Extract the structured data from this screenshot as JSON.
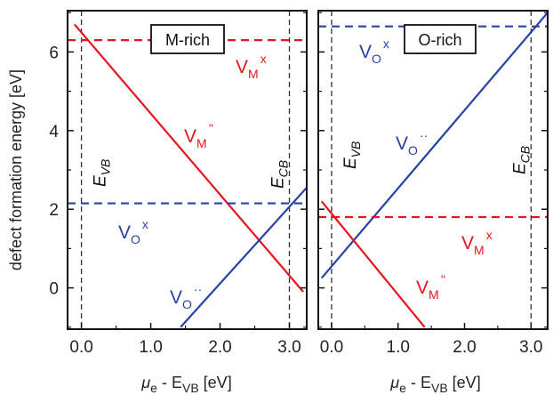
{
  "chart_data": [
    {
      "type": "line",
      "panel_label": "M-rich",
      "xlim": [
        -0.2,
        3.25
      ],
      "ylim": [
        -1.05,
        7.05
      ],
      "xticks": [
        "0.0",
        "1.0",
        "2.0",
        "3.0"
      ],
      "yticks": [
        "0",
        "2",
        "4",
        "6"
      ],
      "E_VB": 0.0,
      "E_CB": 3.0,
      "series": [
        {
          "name": "V_M^x",
          "color": "#e8141b",
          "style": "dashed",
          "x": [
            -0.2,
            3.25
          ],
          "y": [
            6.3,
            6.3
          ]
        },
        {
          "name": "V_M''",
          "color": "#e8141b",
          "style": "solid",
          "x": [
            -0.1,
            3.2
          ],
          "y": [
            6.7,
            -0.1
          ]
        },
        {
          "name": "V_O^x",
          "color": "#2741a6",
          "style": "dashed",
          "x": [
            -0.2,
            3.25
          ],
          "y": [
            2.15,
            2.15
          ]
        },
        {
          "name": "V_O··",
          "color": "#2741a6",
          "style": "solid",
          "x": [
            1.43,
            3.25
          ],
          "y": [
            -1.0,
            2.55
          ]
        }
      ]
    },
    {
      "type": "line",
      "panel_label": "O-rich",
      "xlim": [
        -0.2,
        3.25
      ],
      "ylim": [
        -1.05,
        7.05
      ],
      "xticks": [
        "0.0",
        "1.0",
        "2.0",
        "3.0"
      ],
      "yticks": [
        "0",
        "2",
        "4",
        "6"
      ],
      "E_VB": 0.0,
      "E_CB": 3.0,
      "series": [
        {
          "name": "V_O^x",
          "color": "#2741a6",
          "style": "dashed",
          "x": [
            -0.2,
            3.25
          ],
          "y": [
            6.65,
            6.65
          ]
        },
        {
          "name": "V_O··",
          "color": "#2741a6",
          "style": "solid",
          "x": [
            -0.15,
            3.25
          ],
          "y": [
            0.25,
            7.0
          ]
        },
        {
          "name": "V_M^x",
          "color": "#e8141b",
          "style": "dashed",
          "x": [
            -0.2,
            3.25
          ],
          "y": [
            1.8,
            1.8
          ]
        },
        {
          "name": "V_M''",
          "color": "#e8141b",
          "style": "solid",
          "x": [
            -0.15,
            1.4
          ],
          "y": [
            2.2,
            -1.0
          ]
        }
      ]
    }
  ],
  "labels": {
    "ylabel": "defect formation energy [eV]",
    "xlabel_mu": "μ",
    "xlabel_mu_sub": "e",
    "xlabel_mid": " - E",
    "xlabel_E_sub": "VB",
    "xlabel_unit": " [eV]",
    "evb_main": "E",
    "evb_sub": "VB",
    "ecb_main": "E",
    "ecb_sub": "CB",
    "v_main": "V",
    "m_sub": "M",
    "o_sub": "O",
    "x_sup": "x",
    "dprime_sup": "''",
    "dots_sup": "··"
  },
  "colors": {
    "red": "#e8141b",
    "blue": "#2741a6",
    "frame": "#111111",
    "guide": "#333333"
  }
}
